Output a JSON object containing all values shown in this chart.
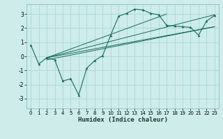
{
  "xlabel": "Humidex (Indice chaleur)",
  "bg_color": "#cdecea",
  "grid_color": "#a8d8d5",
  "line_color": "#1a6b5a",
  "marker_color": "#1a6b5a",
  "xlim": [
    -0.5,
    23.5
  ],
  "ylim": [
    -3.7,
    3.7
  ],
  "xticks": [
    0,
    1,
    2,
    3,
    4,
    5,
    6,
    7,
    8,
    9,
    10,
    11,
    12,
    13,
    14,
    15,
    16,
    17,
    18,
    19,
    20,
    21,
    22,
    23
  ],
  "yticks": [
    -3,
    -2,
    -1,
    0,
    1,
    2,
    3
  ],
  "curve_x": [
    0,
    1,
    2,
    3,
    4,
    5,
    6,
    7,
    8,
    9,
    10,
    11,
    12,
    13,
    14,
    15,
    16,
    17,
    18,
    19,
    20,
    21,
    22,
    23
  ],
  "curve_y": [
    0.8,
    -0.55,
    -0.1,
    -0.25,
    -1.75,
    -1.6,
    -2.75,
    -0.85,
    -0.3,
    0.05,
    1.5,
    2.85,
    3.05,
    3.35,
    3.3,
    3.05,
    2.95,
    2.2,
    2.15,
    2.1,
    2.05,
    1.5,
    2.5,
    2.9
  ],
  "line1_x": [
    2,
    23
  ],
  "line1_y": [
    -0.1,
    2.1
  ],
  "line2_x": [
    2,
    17
  ],
  "line2_y": [
    -0.1,
    3.0
  ],
  "line3_x": [
    2,
    23
  ],
  "line3_y": [
    -0.1,
    2.95
  ],
  "line4_x": [
    2,
    23
  ],
  "line4_y": [
    -0.25,
    2.1
  ]
}
